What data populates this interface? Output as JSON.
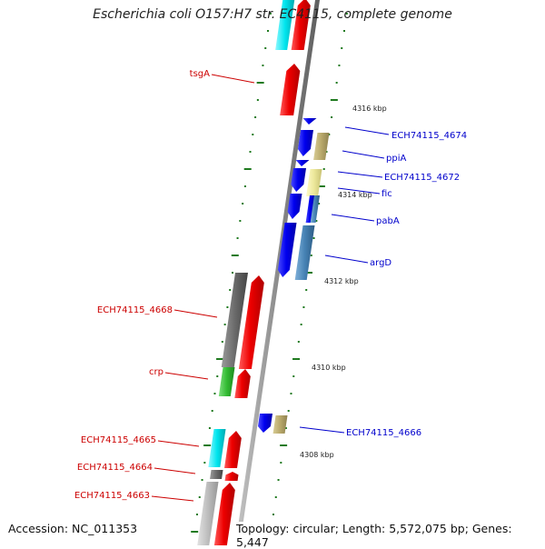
{
  "title": "Escherichia coli O157:H7 str. EC4115, complete genome",
  "footer": {
    "accession": "Accession: NC_011353",
    "topology": "Topology: circular; Length: 5,572,075 bp; Genes: 5,447"
  },
  "colors": {
    "backbone": "#8c8c8c",
    "ruler": "#1f7a1f",
    "forward_label": "#cc0000",
    "reverse_label": "#0000cc",
    "red": "#ee0000",
    "blue": "#0000ee",
    "cyan": "#00e5ee",
    "khaki": "#b8a86a",
    "paleyellow": "#ece79a",
    "steelblue": "#4682b4",
    "gray": "#707070",
    "lightgray": "#bdbdbd",
    "green": "#33bb33"
  },
  "ruler_labels": [
    "4316 kbp",
    "4314 kbp",
    "4312 kbp",
    "4310 kbp",
    "4308 kbp"
  ],
  "genes": [
    {
      "label": "tsgA",
      "strand": "forward"
    },
    {
      "label": "ECH74115_4674",
      "strand": "reverse"
    },
    {
      "label": "ppiA",
      "strand": "reverse"
    },
    {
      "label": "ECH74115_4672",
      "strand": "reverse"
    },
    {
      "label": "fic",
      "strand": "reverse"
    },
    {
      "label": "pabA",
      "strand": "reverse"
    },
    {
      "label": "argD",
      "strand": "reverse"
    },
    {
      "label": "ECH74115_4668",
      "strand": "forward"
    },
    {
      "label": "crp",
      "strand": "forward"
    },
    {
      "label": "ECH74115_4666",
      "strand": "reverse"
    },
    {
      "label": "ECH74115_4665",
      "strand": "forward"
    },
    {
      "label": "ECH74115_4664",
      "strand": "forward"
    },
    {
      "label": "ECH74115_4663",
      "strand": "forward"
    }
  ]
}
